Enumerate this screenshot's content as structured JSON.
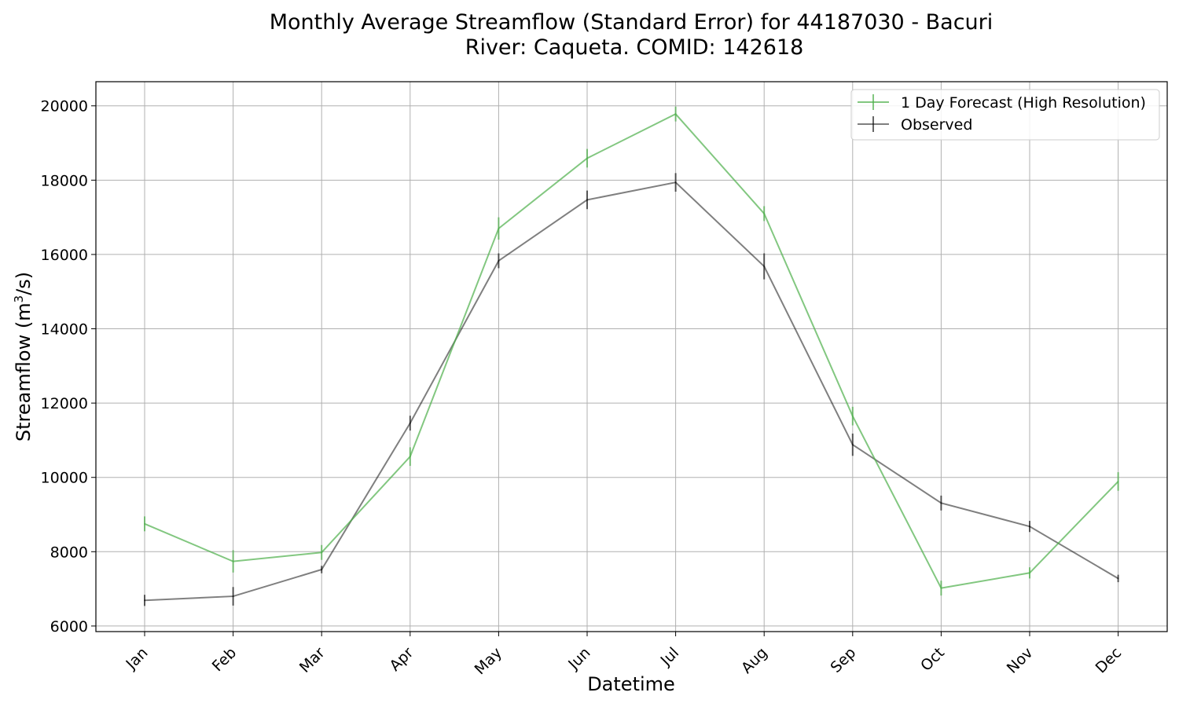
{
  "chart_data": {
    "type": "line",
    "title_line1": "Monthly Average Streamflow (Standard Error) for 44187030 - Bacuri",
    "title_line2": "River: Caqueta. COMID: 142618",
    "xlabel": "Datetime",
    "ylabel_main": "Streamflow (m",
    "ylabel_sup": "3",
    "ylabel_tail": "/s)",
    "categories": [
      "Jan",
      "Feb",
      "Mar",
      "Apr",
      "May",
      "Jun",
      "Jul",
      "Aug",
      "Sep",
      "Oct",
      "Nov",
      "Dec"
    ],
    "ylim": [
      5850,
      20650
    ],
    "yticks": [
      "6000",
      "8000",
      "10000",
      "12000",
      "14000",
      "16000",
      "18000",
      "20000"
    ],
    "grid": true,
    "legend_position": "top-right",
    "series": [
      {
        "name": "1 Day Forecast (High Resolution)",
        "color": "#4daf4a",
        "values": [
          8750,
          7740,
          7980,
          10560,
          16700,
          18590,
          19780,
          17100,
          11650,
          7020,
          7430,
          9890
        ],
        "errors": [
          200,
          300,
          200,
          250,
          300,
          250,
          200,
          200,
          250,
          200,
          150,
          250
        ]
      },
      {
        "name": "Observed",
        "color": "#000000",
        "values": [
          6690,
          6800,
          7520,
          11460,
          15830,
          17470,
          17940,
          15680,
          10880,
          9310,
          8680,
          7280
        ],
        "errors": [
          150,
          250,
          100,
          200,
          200,
          250,
          250,
          350,
          300,
          200,
          150,
          100
        ]
      }
    ]
  }
}
